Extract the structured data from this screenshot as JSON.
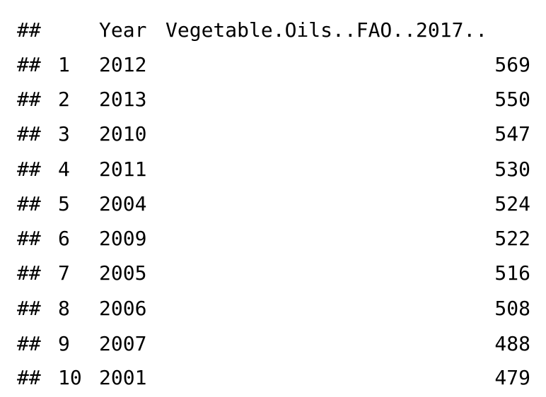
{
  "console": {
    "prefix": "##",
    "header": {
      "year": "Year",
      "value": "Vegetable.Oils..FAO..2017.."
    },
    "rows": [
      {
        "num": "1",
        "year": "2012",
        "value": "569"
      },
      {
        "num": "2",
        "year": "2013",
        "value": "550"
      },
      {
        "num": "3",
        "year": "2010",
        "value": "547"
      },
      {
        "num": "4",
        "year": "2011",
        "value": "530"
      },
      {
        "num": "5",
        "year": "2004",
        "value": "524"
      },
      {
        "num": "6",
        "year": "2009",
        "value": "522"
      },
      {
        "num": "7",
        "year": "2005",
        "value": "516"
      },
      {
        "num": "8",
        "year": "2006",
        "value": "508"
      },
      {
        "num": "9",
        "year": "2007",
        "value": "488"
      },
      {
        "num": "10",
        "year": "2001",
        "value": "479"
      }
    ]
  }
}
